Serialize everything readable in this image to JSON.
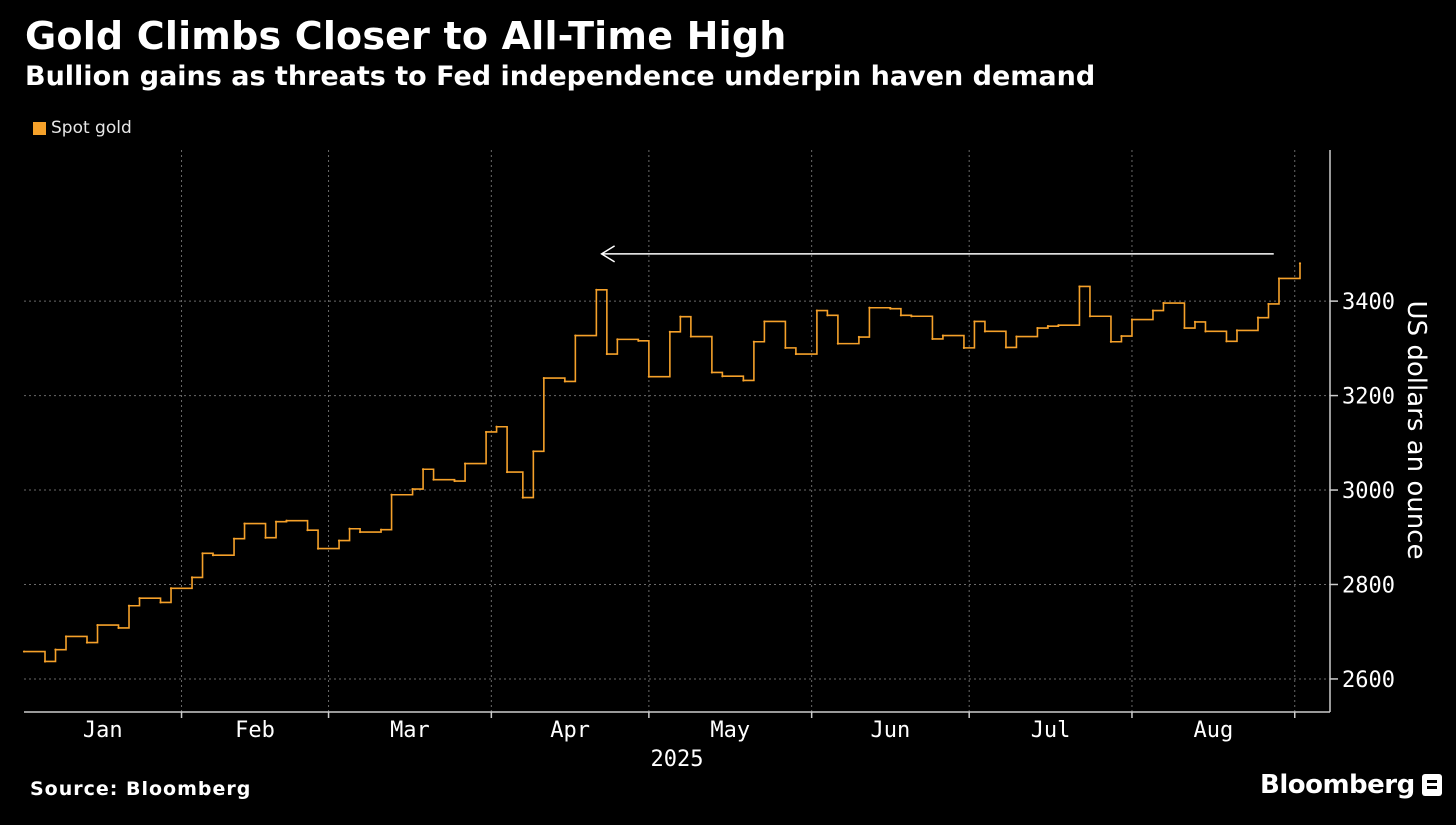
{
  "header": {
    "title": "Gold Climbs Closer to All-Time High",
    "subtitle": "Bullion gains as threats to Fed independence underpin haven demand"
  },
  "footer": {
    "source": "Source: Bloomberg",
    "brand": "Bloomberg"
  },
  "icons": {
    "brand": "bloomberg-mark-icon"
  },
  "colors": {
    "background": "#000000",
    "series": "#f5a12a",
    "grid": "#6a6a6a",
    "axis": "#cccccc",
    "arrow": "#ffffff"
  },
  "chart_data": {
    "type": "line",
    "title": "Gold Climbs Closer to All-Time High",
    "subtitle": "Bullion gains as threats to Fed independence underpin haven demand",
    "ylabel": "US dollars an ounce",
    "xlabel": "2025",
    "legend": {
      "position": "top-left",
      "entries": [
        "Spot gold"
      ]
    },
    "ylim": [
      2530,
      3720
    ],
    "yticks": [
      2600,
      2800,
      3000,
      3200,
      3400
    ],
    "ytick_labels": [
      "2600",
      "2800",
      "3000",
      "3200",
      "3400"
    ],
    "months": [
      "Jan",
      "Feb",
      "Mar",
      "Apr",
      "May",
      "Jun",
      "Jul",
      "Aug"
    ],
    "year_label": "2025",
    "grid": true,
    "annotation": {
      "type": "arrow",
      "from_date": "2025-08-28",
      "to_date": "2025-04-22",
      "value": 3500
    },
    "series": [
      {
        "name": "Spot gold",
        "points": [
          [
            "2025-01-02",
            2658
          ],
          [
            "2025-01-06",
            2637
          ],
          [
            "2025-01-08",
            2662
          ],
          [
            "2025-01-10",
            2690
          ],
          [
            "2025-01-14",
            2677
          ],
          [
            "2025-01-16",
            2714
          ],
          [
            "2025-01-20",
            2708
          ],
          [
            "2025-01-22",
            2755
          ],
          [
            "2025-01-24",
            2771
          ],
          [
            "2025-01-28",
            2762
          ],
          [
            "2025-01-30",
            2792
          ],
          [
            "2025-02-03",
            2815
          ],
          [
            "2025-02-05",
            2866
          ],
          [
            "2025-02-07",
            2862
          ],
          [
            "2025-02-11",
            2897
          ],
          [
            "2025-02-13",
            2929
          ],
          [
            "2025-02-17",
            2899
          ],
          [
            "2025-02-19",
            2933
          ],
          [
            "2025-02-21",
            2935
          ],
          [
            "2025-02-25",
            2915
          ],
          [
            "2025-02-27",
            2876
          ],
          [
            "2025-03-03",
            2893
          ],
          [
            "2025-03-05",
            2918
          ],
          [
            "2025-03-07",
            2911
          ],
          [
            "2025-03-11",
            2916
          ],
          [
            "2025-03-13",
            2990
          ],
          [
            "2025-03-17",
            3002
          ],
          [
            "2025-03-19",
            3044
          ],
          [
            "2025-03-21",
            3022
          ],
          [
            "2025-03-25",
            3019
          ],
          [
            "2025-03-27",
            3056
          ],
          [
            "2025-03-31",
            3123
          ],
          [
            "2025-04-02",
            3134
          ],
          [
            "2025-04-04",
            3038
          ],
          [
            "2025-04-07",
            2984
          ],
          [
            "2025-04-09",
            3082
          ],
          [
            "2025-04-11",
            3237
          ],
          [
            "2025-04-15",
            3230
          ],
          [
            "2025-04-17",
            3327
          ],
          [
            "2025-04-21",
            3424
          ],
          [
            "2025-04-23",
            3288
          ],
          [
            "2025-04-25",
            3319
          ],
          [
            "2025-04-29",
            3316
          ],
          [
            "2025-05-01",
            3240
          ],
          [
            "2025-05-05",
            3335
          ],
          [
            "2025-05-07",
            3367
          ],
          [
            "2025-05-09",
            3325
          ],
          [
            "2025-05-13",
            3249
          ],
          [
            "2025-05-15",
            3241
          ],
          [
            "2025-05-19",
            3232
          ],
          [
            "2025-05-21",
            3314
          ],
          [
            "2025-05-23",
            3357
          ],
          [
            "2025-05-27",
            3301
          ],
          [
            "2025-05-29",
            3288
          ],
          [
            "2025-06-02",
            3380
          ],
          [
            "2025-06-04",
            3370
          ],
          [
            "2025-06-06",
            3310
          ],
          [
            "2025-06-10",
            3324
          ],
          [
            "2025-06-12",
            3386
          ],
          [
            "2025-06-16",
            3384
          ],
          [
            "2025-06-18",
            3370
          ],
          [
            "2025-06-20",
            3368
          ],
          [
            "2025-06-24",
            3320
          ],
          [
            "2025-06-26",
            3327
          ],
          [
            "2025-06-30",
            3301
          ],
          [
            "2025-07-02",
            3357
          ],
          [
            "2025-07-04",
            3336
          ],
          [
            "2025-07-08",
            3302
          ],
          [
            "2025-07-10",
            3325
          ],
          [
            "2025-07-14",
            3343
          ],
          [
            "2025-07-16",
            3347
          ],
          [
            "2025-07-18",
            3349
          ],
          [
            "2025-07-22",
            3431
          ],
          [
            "2025-07-24",
            3368
          ],
          [
            "2025-07-28",
            3314
          ],
          [
            "2025-07-30",
            3326
          ],
          [
            "2025-08-01",
            3361
          ],
          [
            "2025-08-05",
            3380
          ],
          [
            "2025-08-07",
            3396
          ],
          [
            "2025-08-11",
            3343
          ],
          [
            "2025-08-13",
            3356
          ],
          [
            "2025-08-15",
            3336
          ],
          [
            "2025-08-19",
            3315
          ],
          [
            "2025-08-21",
            3338
          ],
          [
            "2025-08-25",
            3365
          ],
          [
            "2025-08-27",
            3394
          ],
          [
            "2025-08-29",
            3448
          ],
          [
            "2025-09-02",
            3480
          ]
        ]
      }
    ]
  }
}
